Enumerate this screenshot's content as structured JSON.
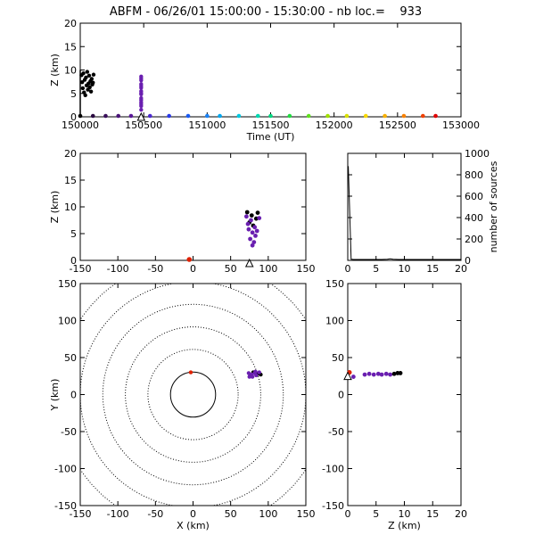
{
  "title": "ABFM - 06/26/01 15:00:00 - 15:30:00 - nb loc.=    933",
  "chart_data": [
    {
      "id": "time-height",
      "type": "scatter",
      "xlabel": "Time (UT)",
      "ylabel": "Z (km)",
      "xlim": [
        150000,
        153000
      ],
      "ylim": [
        0,
        20
      ],
      "xticks": [
        150000,
        150500,
        151000,
        151500,
        152000,
        152500,
        153000
      ],
      "yticks": [
        0,
        5,
        10,
        15,
        20
      ],
      "sources": [
        {
          "x": 150010,
          "z": 8.9,
          "color": "#000000"
        },
        {
          "x": 150015,
          "z": 7.4,
          "color": "#000000"
        },
        {
          "x": 150020,
          "z": 6.1,
          "color": "#000000"
        },
        {
          "x": 150025,
          "z": 9.3,
          "color": "#000000"
        },
        {
          "x": 150030,
          "z": 5.2,
          "color": "#000000"
        },
        {
          "x": 150035,
          "z": 7.9,
          "color": "#000000"
        },
        {
          "x": 150040,
          "z": 4.6,
          "color": "#000000"
        },
        {
          "x": 150045,
          "z": 8.4,
          "color": "#000000"
        },
        {
          "x": 150050,
          "z": 6.7,
          "color": "#000000"
        },
        {
          "x": 150055,
          "z": 9.6,
          "color": "#000000"
        },
        {
          "x": 150060,
          "z": 5.8,
          "color": "#000000"
        },
        {
          "x": 150065,
          "z": 7.1,
          "color": "#000000"
        },
        {
          "x": 150070,
          "z": 8.8,
          "color": "#000000"
        },
        {
          "x": 150075,
          "z": 6.3,
          "color": "#000000"
        },
        {
          "x": 150080,
          "z": 7.6,
          "color": "#000000"
        },
        {
          "x": 150085,
          "z": 5.4,
          "color": "#000000"
        },
        {
          "x": 150090,
          "z": 8.1,
          "color": "#000000"
        },
        {
          "x": 150095,
          "z": 6.9,
          "color": "#000000"
        },
        {
          "x": 150100,
          "z": 7.3,
          "color": "#000000"
        },
        {
          "x": 150105,
          "z": 9.0,
          "color": "#000000"
        },
        {
          "x": 150480,
          "z": 8.6,
          "color": "#6a1fb0"
        },
        {
          "x": 150480,
          "z": 7.8,
          "color": "#6a1fb0"
        },
        {
          "x": 150480,
          "z": 7.0,
          "color": "#6a1fb0"
        },
        {
          "x": 150480,
          "z": 6.2,
          "color": "#6a1fb0"
        },
        {
          "x": 150480,
          "z": 5.5,
          "color": "#6a1fb0"
        },
        {
          "x": 150480,
          "z": 4.8,
          "color": "#6a1fb0"
        },
        {
          "x": 150480,
          "z": 4.0,
          "color": "#6a1fb0"
        },
        {
          "x": 150480,
          "z": 3.1,
          "color": "#6a1fb0"
        },
        {
          "x": 150480,
          "z": 2.3,
          "color": "#6a1fb0"
        },
        {
          "x": 150480,
          "z": 1.5,
          "color": "#6a1fb0"
        },
        {
          "x": 150480,
          "z": 8.2,
          "color": "#6a1fb0"
        },
        {
          "x": 150480,
          "z": 6.6,
          "color": "#6a1fb0"
        },
        {
          "x": 150480,
          "z": 5.1,
          "color": "#6a1fb0"
        },
        {
          "x": 150480,
          "z": 3.6,
          "color": "#6a1fb0"
        },
        {
          "x": 150480,
          "z": 2.7,
          "color": "#6a1fb0"
        }
      ],
      "ground_points": [
        {
          "x": 150000,
          "color": "#000000"
        },
        {
          "x": 150100,
          "color": "#2a0a40"
        },
        {
          "x": 150200,
          "color": "#3a0f5c"
        },
        {
          "x": 150300,
          "color": "#4a1478"
        },
        {
          "x": 150400,
          "color": "#5a1898"
        },
        {
          "x": 150550,
          "color": "#4c2ad0"
        },
        {
          "x": 150700,
          "color": "#2a3ae8"
        },
        {
          "x": 150850,
          "color": "#1a5af0"
        },
        {
          "x": 151000,
          "color": "#1a82f5"
        },
        {
          "x": 151100,
          "color": "#00a8f0"
        },
        {
          "x": 151250,
          "color": "#00c8e0"
        },
        {
          "x": 151400,
          "color": "#00d8b0"
        },
        {
          "x": 151500,
          "color": "#00d880"
        },
        {
          "x": 151650,
          "color": "#20dc40"
        },
        {
          "x": 151800,
          "color": "#60e020"
        },
        {
          "x": 151950,
          "color": "#a0e000"
        },
        {
          "x": 152100,
          "color": "#d8e000"
        },
        {
          "x": 152250,
          "color": "#f8d800"
        },
        {
          "x": 152400,
          "color": "#f8b000"
        },
        {
          "x": 152550,
          "color": "#f88000"
        },
        {
          "x": 152700,
          "color": "#f04000"
        },
        {
          "x": 152800,
          "color": "#e00000"
        }
      ],
      "triangle": {
        "x": 150480,
        "z": 0
      },
      "bar": {
        "x": 150000,
        "z_min": 0,
        "z_max": 10
      }
    },
    {
      "id": "x-height",
      "type": "scatter",
      "xlabel": "",
      "ylabel": "Z (km)",
      "xlim": [
        -150,
        150
      ],
      "ylim": [
        0,
        20
      ],
      "xticks": [
        -150,
        -100,
        -50,
        0,
        50,
        100,
        150
      ],
      "yticks": [
        0,
        5,
        10,
        15,
        20
      ],
      "sources": [
        {
          "x": 72,
          "z": 9.0,
          "color": "#000000"
        },
        {
          "x": 78,
          "z": 8.4,
          "color": "#000000"
        },
        {
          "x": 84,
          "z": 7.8,
          "color": "#000000"
        },
        {
          "x": 75,
          "z": 7.1,
          "color": "#000000"
        },
        {
          "x": 80,
          "z": 6.5,
          "color": "#000000"
        },
        {
          "x": 86,
          "z": 8.9,
          "color": "#000000"
        },
        {
          "x": 74,
          "z": 5.8,
          "color": "#6a1fb0"
        },
        {
          "x": 79,
          "z": 5.2,
          "color": "#6a1fb0"
        },
        {
          "x": 83,
          "z": 4.6,
          "color": "#6a1fb0"
        },
        {
          "x": 76,
          "z": 4.0,
          "color": "#6a1fb0"
        },
        {
          "x": 81,
          "z": 3.4,
          "color": "#6a1fb0"
        },
        {
          "x": 77,
          "z": 7.5,
          "color": "#6a1fb0"
        },
        {
          "x": 82,
          "z": 6.2,
          "color": "#6a1fb0"
        },
        {
          "x": 73,
          "z": 6.8,
          "color": "#6a1fb0"
        },
        {
          "x": 85,
          "z": 5.5,
          "color": "#6a1fb0"
        },
        {
          "x": 79,
          "z": 2.8,
          "color": "#6a1fb0"
        },
        {
          "x": 88,
          "z": 7.9,
          "color": "#6a1fb0"
        },
        {
          "x": 71,
          "z": 8.2,
          "color": "#6a1fb0"
        }
      ],
      "station": {
        "x": -5,
        "z": 0,
        "color": "#e02000"
      },
      "triangle": {
        "x": 75,
        "z": -0.5
      }
    },
    {
      "id": "height-histogram",
      "type": "line",
      "xlabel": "",
      "ylabel": "number of sources",
      "xlim": [
        0,
        20
      ],
      "ylim": [
        0,
        1000
      ],
      "xticks": [
        0,
        5,
        10,
        15,
        20
      ],
      "yticks": [
        0,
        200,
        400,
        600,
        800,
        1000
      ],
      "z": [
        0.1,
        0.6,
        1,
        2,
        3,
        4,
        5,
        6,
        7,
        7.5,
        8,
        9,
        10,
        12,
        15,
        20
      ],
      "counts": [
        880,
        10,
        8,
        8,
        8,
        8,
        8,
        8,
        10,
        14,
        10,
        8,
        8,
        8,
        8,
        8
      ]
    },
    {
      "id": "plan-view",
      "type": "scatter",
      "xlabel": "X (km)",
      "ylabel": "Y (km)",
      "xlim": [
        -150,
        150
      ],
      "ylim": [
        -150,
        150
      ],
      "xticks": [
        -150,
        -100,
        -50,
        0,
        50,
        100,
        150
      ],
      "yticks": [
        -150,
        -100,
        -50,
        0,
        50,
        100,
        150
      ],
      "ring_radii_km": [
        30,
        60,
        90,
        120,
        150,
        180
      ],
      "sources": [
        {
          "x": 76,
          "y": 26,
          "color": "#000000"
        },
        {
          "x": 80,
          "y": 30,
          "color": "#000000"
        },
        {
          "x": 86,
          "y": 28,
          "color": "#000000"
        },
        {
          "x": 90,
          "y": 27,
          "color": "#000000"
        },
        {
          "x": 74,
          "y": 29,
          "color": "#6a1fb0"
        },
        {
          "x": 78,
          "y": 27,
          "color": "#6a1fb0"
        },
        {
          "x": 82,
          "y": 29,
          "color": "#6a1fb0"
        },
        {
          "x": 84,
          "y": 26,
          "color": "#6a1fb0"
        },
        {
          "x": 79,
          "y": 24,
          "color": "#6a1fb0"
        },
        {
          "x": 88,
          "y": 30,
          "color": "#6a1fb0"
        },
        {
          "x": 75,
          "y": 24,
          "color": "#6a1fb0"
        },
        {
          "x": 83,
          "y": 31,
          "color": "#6a1fb0"
        }
      ],
      "station": {
        "x": -3,
        "y": 30,
        "color": "#e02000"
      }
    },
    {
      "id": "height-y",
      "type": "scatter",
      "xlabel": "Z (km)",
      "ylabel": "",
      "xlim": [
        0,
        20
      ],
      "ylim": [
        -150,
        150
      ],
      "xticks": [
        0,
        5,
        10,
        15,
        20
      ],
      "yticks": [
        -150,
        -100,
        -50,
        0,
        50,
        100,
        150
      ],
      "sources": [
        {
          "z": 3.0,
          "y": 27,
          "color": "#6a1fb0"
        },
        {
          "z": 3.8,
          "y": 28,
          "color": "#6a1fb0"
        },
        {
          "z": 4.6,
          "y": 27,
          "color": "#6a1fb0"
        },
        {
          "z": 5.4,
          "y": 28,
          "color": "#6a1fb0"
        },
        {
          "z": 6.0,
          "y": 27,
          "color": "#6a1fb0"
        },
        {
          "z": 6.8,
          "y": 28,
          "color": "#6a1fb0"
        },
        {
          "z": 7.5,
          "y": 27,
          "color": "#6a1fb0"
        },
        {
          "z": 8.2,
          "y": 28,
          "color": "#000000"
        },
        {
          "z": 8.8,
          "y": 29,
          "color": "#000000"
        },
        {
          "z": 9.3,
          "y": 29,
          "color": "#000000"
        },
        {
          "z": 1.0,
          "y": 24,
          "color": "#6a1fb0"
        }
      ],
      "station": {
        "z": 0.3,
        "y": 30,
        "color": "#e02000"
      },
      "triangle": {
        "z": 0,
        "y": 24
      }
    }
  ]
}
